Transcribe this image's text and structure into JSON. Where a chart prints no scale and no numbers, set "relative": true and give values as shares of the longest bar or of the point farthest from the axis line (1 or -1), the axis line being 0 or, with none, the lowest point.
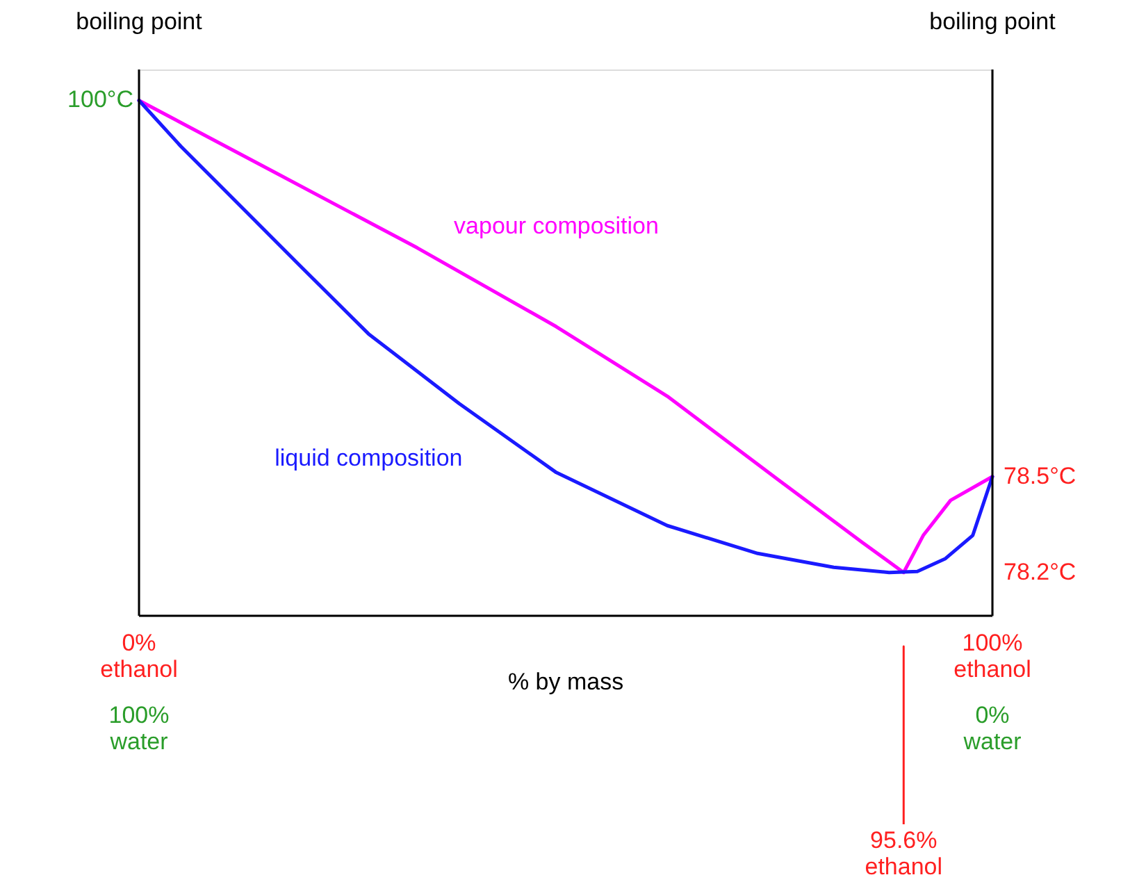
{
  "chart_data": {
    "type": "line",
    "relative": true,
    "ylabel": "boiling point",
    "y2label": "boiling point",
    "xlabel": "% by mass",
    "xlim": [
      0,
      100
    ],
    "xticks": [
      {
        "value": 0,
        "label": "0%\nethanol"
      },
      {
        "value": 100,
        "label": "100%\nethanol"
      }
    ],
    "series": [
      {
        "name": "vapour composition",
        "color": "#ff00ff",
        "x": [
          0,
          16.3,
          32.6,
          48.9,
          61.9,
          74.9,
          84.7,
          89.6,
          91.9,
          95.1,
          100
        ],
        "values": [
          1.0,
          0.857,
          0.714,
          0.561,
          0.426,
          0.264,
          0.143,
          0.084,
          0.156,
          0.224,
          0.27
        ]
      },
      {
        "name": "liquid composition",
        "color": "#1a1aff",
        "x": [
          0,
          4.9,
          12.2,
          18.7,
          26.9,
          37.5,
          48.9,
          61.9,
          72.5,
          81.4,
          87.9,
          91.2,
          94.5,
          97.7,
          100
        ],
        "values": [
          1.0,
          0.911,
          0.79,
          0.682,
          0.547,
          0.412,
          0.278,
          0.175,
          0.121,
          0.094,
          0.084,
          0.086,
          0.111,
          0.156,
          0.27
        ]
      }
    ],
    "annotations": [
      {
        "text": "100°C",
        "x": 0,
        "y": 1.0
      },
      {
        "text": "78.5°C",
        "x": 100,
        "y": 0.27
      },
      "78.2°C",
      "100%\nwater",
      "0%\nwater",
      {
        "text": "95.6%\nethanol",
        "x": 89.6
      }
    ]
  }
}
